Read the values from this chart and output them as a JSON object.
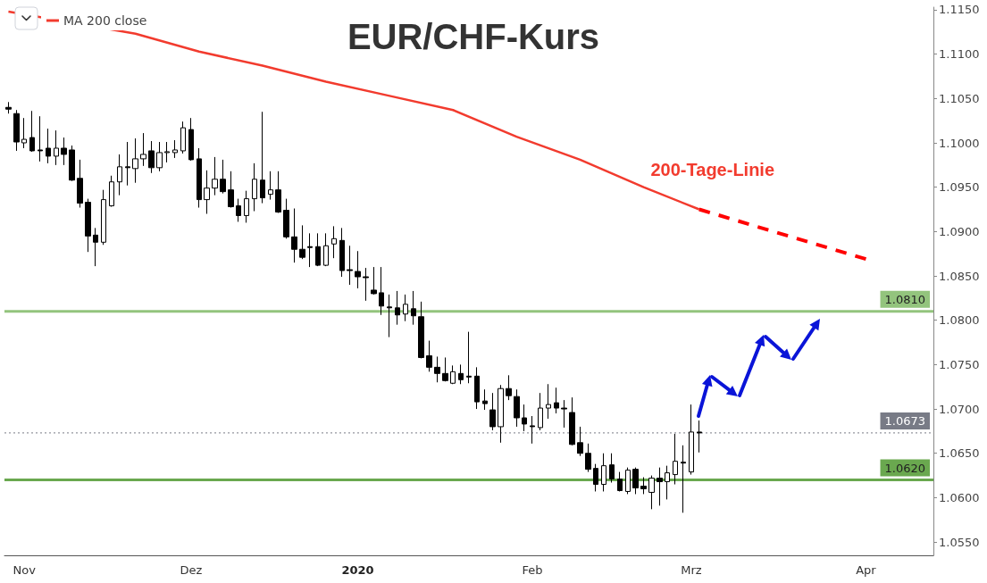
{
  "chart_data": {
    "type": "candlestick",
    "title": "EUR/CHF-Kurs",
    "categories": [
      null,
      null,
      "Nov",
      null,
      null,
      null,
      null,
      null,
      null,
      null,
      null,
      null,
      null,
      null,
      null,
      null,
      null,
      null,
      null,
      null,
      null,
      null,
      null,
      "Dez",
      null,
      null,
      null,
      null,
      null,
      null,
      null,
      null,
      null,
      null,
      null,
      null,
      null,
      null,
      null,
      null,
      null,
      null,
      null,
      null,
      "2020",
      null,
      null,
      null,
      null,
      null,
      null,
      null,
      null,
      null,
      null,
      null,
      null,
      null,
      null,
      null,
      null,
      null,
      null,
      null,
      null,
      null,
      "Feb",
      null,
      null,
      null,
      null,
      null,
      null,
      null,
      null,
      null,
      null,
      null,
      null,
      null,
      null,
      null,
      null,
      null,
      null,
      null,
      "Mrz",
      null,
      null,
      null,
      null,
      null,
      null,
      null,
      null,
      null,
      null,
      null,
      null,
      null,
      null,
      null,
      null,
      null,
      null,
      null,
      null,
      null,
      "Apr",
      null,
      null,
      null,
      null,
      null,
      null,
      null,
      null
    ],
    "ohlc": [
      [
        1.104,
        1.1046,
        1.1033,
        1.1038
      ],
      [
        1.1033,
        1.1037,
        1.0991,
        1.1001
      ],
      [
        1.1,
        1.1028,
        1.0994,
        1.1004
      ],
      [
        1.1006,
        1.1036,
        1.099,
        1.0991
      ],
      [
        1.0992,
        1.103,
        1.0979,
        1.0991
      ],
      [
        1.0994,
        1.1016,
        1.0977,
        1.0985
      ],
      [
        1.0985,
        1.1014,
        1.0975,
        1.0994
      ],
      [
        1.0994,
        1.1006,
        1.0975,
        1.0987
      ],
      [
        1.0992,
        1.0997,
        1.0957,
        1.0958
      ],
      [
        1.096,
        1.0981,
        1.0927,
        1.0932
      ],
      [
        1.0933,
        1.0937,
        1.0877,
        1.0895
      ],
      [
        1.0896,
        1.0904,
        1.0861,
        1.0888
      ],
      [
        1.0888,
        1.0947,
        1.0885,
        1.0936
      ],
      [
        1.0929,
        1.0963,
        1.0928,
        1.0956
      ],
      [
        1.0956,
        1.0987,
        1.0941,
        1.0973
      ],
      [
        1.0973,
        1.1001,
        1.0952,
        1.0972
      ],
      [
        1.0971,
        1.1005,
        1.0955,
        1.0982
      ],
      [
        1.0982,
        1.1011,
        1.0974,
        1.0987
      ],
      [
        1.0991,
        1.1002,
        1.0966,
        1.0972
      ],
      [
        1.0972,
        1.1001,
        1.0968,
        1.0989
      ],
      [
        1.0989,
        1.1001,
        1.0978,
        1.099
      ],
      [
        1.0989,
        1.1003,
        1.0983,
        1.0992
      ],
      [
        1.0991,
        1.1024,
        1.0988,
        1.1017
      ],
      [
        1.1015,
        1.1028,
        1.098,
        1.0981
      ],
      [
        1.0982,
        1.0994,
        1.0927,
        1.0936
      ],
      [
        1.0936,
        1.0969,
        1.092,
        1.0949
      ],
      [
        1.0949,
        1.0984,
        1.0941,
        1.0959
      ],
      [
        1.0959,
        1.0981,
        1.0943,
        1.0945
      ],
      [
        1.0947,
        1.0968,
        1.0927,
        1.0928
      ],
      [
        1.0929,
        1.0937,
        1.0911,
        1.0918
      ],
      [
        1.0918,
        1.0946,
        1.091,
        1.0937
      ],
      [
        1.0937,
        1.0977,
        1.0923,
        1.0959
      ],
      [
        1.0958,
        1.1035,
        1.0932,
        1.0938
      ],
      [
        1.0942,
        1.0968,
        1.0936,
        1.0947
      ],
      [
        1.0947,
        1.0968,
        1.0921,
        1.0922
      ],
      [
        1.0924,
        1.0937,
        1.0892,
        1.0894
      ],
      [
        1.0894,
        1.0926,
        1.0865,
        1.088
      ],
      [
        1.088,
        1.0907,
        1.0869,
        1.0871
      ],
      [
        1.0883,
        1.0898,
        1.086,
        1.0882
      ],
      [
        1.0883,
        1.0898,
        1.0861,
        1.0862
      ],
      [
        1.0862,
        1.0898,
        1.0861,
        1.0884
      ],
      [
        1.0886,
        1.0906,
        1.087,
        1.0892
      ],
      [
        1.089,
        1.0904,
        1.0849,
        1.0856
      ],
      [
        1.0857,
        1.0884,
        1.084,
        1.0856
      ],
      [
        1.0855,
        1.0878,
        1.0836,
        1.0849
      ],
      [
        1.0849,
        1.0859,
        1.0822,
        1.0848
      ],
      [
        1.0834,
        1.086,
        1.0829,
        1.083
      ],
      [
        1.0831,
        1.086,
        1.0806,
        1.0816
      ],
      [
        1.0815,
        1.0829,
        1.0781,
        1.0814
      ],
      [
        1.0814,
        1.0833,
        1.0795,
        1.0806
      ],
      [
        1.0807,
        1.0829,
        1.0799,
        1.0818
      ],
      [
        1.0813,
        1.0833,
        1.0795,
        1.0805
      ],
      [
        1.0804,
        1.0821,
        1.0757,
        1.0758
      ],
      [
        1.076,
        1.0777,
        1.0742,
        1.0747
      ],
      [
        1.0747,
        1.0759,
        1.073,
        1.074
      ],
      [
        1.074,
        1.0758,
        1.0731,
        1.0732
      ],
      [
        1.0729,
        1.0749,
        1.0728,
        1.0742
      ],
      [
        1.074,
        1.075,
        1.0728,
        1.0733
      ],
      [
        1.0737,
        1.0787,
        1.0729,
        1.0736
      ],
      [
        1.0737,
        1.0747,
        1.07,
        1.0708
      ],
      [
        1.0709,
        1.0722,
        1.0699,
        1.0706
      ],
      [
        1.0699,
        1.0718,
        1.0676,
        1.068
      ],
      [
        1.068,
        1.0727,
        1.0662,
        1.0723
      ],
      [
        1.0723,
        1.0738,
        1.071,
        1.0715
      ],
      [
        1.0714,
        1.0722,
        1.068,
        1.069
      ],
      [
        1.069,
        1.0705,
        1.0675,
        1.0683
      ],
      [
        1.0681,
        1.0692,
        1.0661,
        1.068
      ],
      [
        1.0679,
        1.0718,
        1.0676,
        1.0701
      ],
      [
        1.0701,
        1.0728,
        1.0689,
        1.0705
      ],
      [
        1.0707,
        1.0724,
        1.0695,
        1.0701
      ],
      [
        1.0701,
        1.071,
        1.0679,
        1.07
      ],
      [
        1.0696,
        1.0713,
        1.0659,
        1.066
      ],
      [
        1.0662,
        1.068,
        1.0647,
        1.065
      ],
      [
        1.065,
        1.0661,
        1.0629,
        1.0632
      ],
      [
        1.0633,
        1.0638,
        1.0607,
        1.0615
      ],
      [
        1.0615,
        1.065,
        1.0607,
        1.0636
      ],
      [
        1.0637,
        1.065,
        1.0617,
        1.0621
      ],
      [
        1.0621,
        1.0629,
        1.0607,
        1.0608
      ],
      [
        1.0607,
        1.0634,
        1.0604,
        1.0631
      ],
      [
        1.0632,
        1.0634,
        1.0604,
        1.0611
      ],
      [
        1.0613,
        1.0623,
        1.0604,
        1.061
      ],
      [
        1.0606,
        1.0625,
        1.0587,
        1.0622
      ],
      [
        1.0622,
        1.0634,
        1.0591,
        1.0618
      ],
      [
        1.0618,
        1.0636,
        1.0598,
        1.0628
      ],
      [
        1.0626,
        1.0672,
        1.0615,
        1.0641
      ],
      [
        1.064,
        1.0659,
        1.0583,
        1.0639
      ],
      [
        1.0629,
        1.0705,
        1.0626,
        1.0674
      ],
      [
        1.0674,
        1.0687,
        1.0651,
        1.0673
      ],
      null,
      null,
      null,
      null,
      null,
      null,
      null,
      null,
      null,
      null,
      null,
      null,
      null,
      null,
      null,
      null,
      null,
      null,
      null,
      null,
      null,
      null,
      null,
      null,
      null,
      null,
      null,
      null,
      null
    ],
    "series": [
      {
        "name": "MA 200 close",
        "type": "line",
        "color": "#f23b2e",
        "values": [
          1.1148,
          null,
          null,
          null,
          null,
          null,
          null,
          null,
          null,
          null,
          null,
          null,
          null,
          null,
          null,
          null,
          1.1123,
          null,
          null,
          null,
          null,
          null,
          null,
          null,
          1.1103,
          null,
          null,
          null,
          null,
          null,
          null,
          null,
          1.1087,
          null,
          null,
          null,
          null,
          null,
          null,
          null,
          1.1069,
          null,
          null,
          null,
          null,
          null,
          null,
          null,
          1.1053,
          null,
          null,
          null,
          null,
          null,
          null,
          null,
          1.1037,
          null,
          null,
          null,
          null,
          null,
          null,
          null,
          1.1007,
          null,
          null,
          null,
          null,
          null,
          null,
          null,
          1.0981,
          null,
          null,
          null,
          null,
          null,
          null,
          null,
          1.095,
          null,
          null,
          null,
          null,
          null,
          null,
          1.0925,
          null,
          null,
          null,
          null,
          null,
          null,
          null,
          null,
          null,
          null,
          null,
          null,
          null,
          null,
          null,
          null,
          null,
          null,
          null,
          null,
          null,
          null,
          null,
          null,
          null,
          null,
          null,
          null,
          null
        ]
      },
      {
        "type": "line",
        "color": "#ff0000",
        "line_style": "dashed",
        "values": [
          null,
          null,
          null,
          null,
          null,
          null,
          null,
          null,
          null,
          null,
          null,
          null,
          null,
          null,
          null,
          null,
          null,
          null,
          null,
          null,
          null,
          null,
          null,
          null,
          null,
          null,
          null,
          null,
          null,
          null,
          null,
          null,
          null,
          null,
          null,
          null,
          null,
          null,
          null,
          null,
          null,
          null,
          null,
          null,
          null,
          null,
          null,
          null,
          null,
          null,
          null,
          null,
          null,
          null,
          null,
          null,
          null,
          null,
          null,
          null,
          null,
          null,
          null,
          null,
          null,
          null,
          null,
          null,
          null,
          null,
          null,
          null,
          null,
          null,
          null,
          null,
          null,
          null,
          null,
          null,
          null,
          null,
          null,
          null,
          null,
          null,
          null,
          1.0925,
          null,
          null,
          null,
          null,
          null,
          null,
          null,
          null,
          null,
          null,
          null,
          null,
          null,
          null,
          null,
          null,
          null,
          null,
          null,
          null,
          1.0869,
          null,
          null,
          null,
          null,
          null,
          null,
          null,
          null
        ]
      }
    ],
    "ylim": [
      1.0535,
      1.1153
    ],
    "yticks": [
      {
        "value": 1.055,
        "label": "1.0550"
      },
      {
        "value": 1.06,
        "label": "1.0600"
      },
      {
        "value": 1.065,
        "label": "1.0650"
      },
      {
        "value": 1.07,
        "label": "1.0700"
      },
      {
        "value": 1.075,
        "label": "1.0750"
      },
      {
        "value": 1.08,
        "label": "1.0800"
      },
      {
        "value": 1.085,
        "label": "1.0850"
      },
      {
        "value": 1.09,
        "label": "1.0900"
      },
      {
        "value": 1.095,
        "label": "1.0950"
      },
      {
        "value": 1.1,
        "label": "1.1000"
      },
      {
        "value": 1.105,
        "label": "1.1050"
      },
      {
        "value": 1.11,
        "label": "1.1100"
      },
      {
        "value": 1.115,
        "label": "1.1150"
      }
    ],
    "ref_lines": [
      {
        "axis": "y",
        "value": 1.081,
        "label": "1.0810",
        "color": "#93c47d"
      },
      {
        "axis": "y",
        "value": 1.0673,
        "label": "1.0673",
        "color": "#787b86",
        "line_style": "dotted"
      },
      {
        "axis": "y",
        "value": 1.062,
        "label": "1.0620",
        "color": "#6aa84f"
      }
    ],
    "annotations": [
      "200-Tage-Linie"
    ],
    "legend": "top left"
  }
}
